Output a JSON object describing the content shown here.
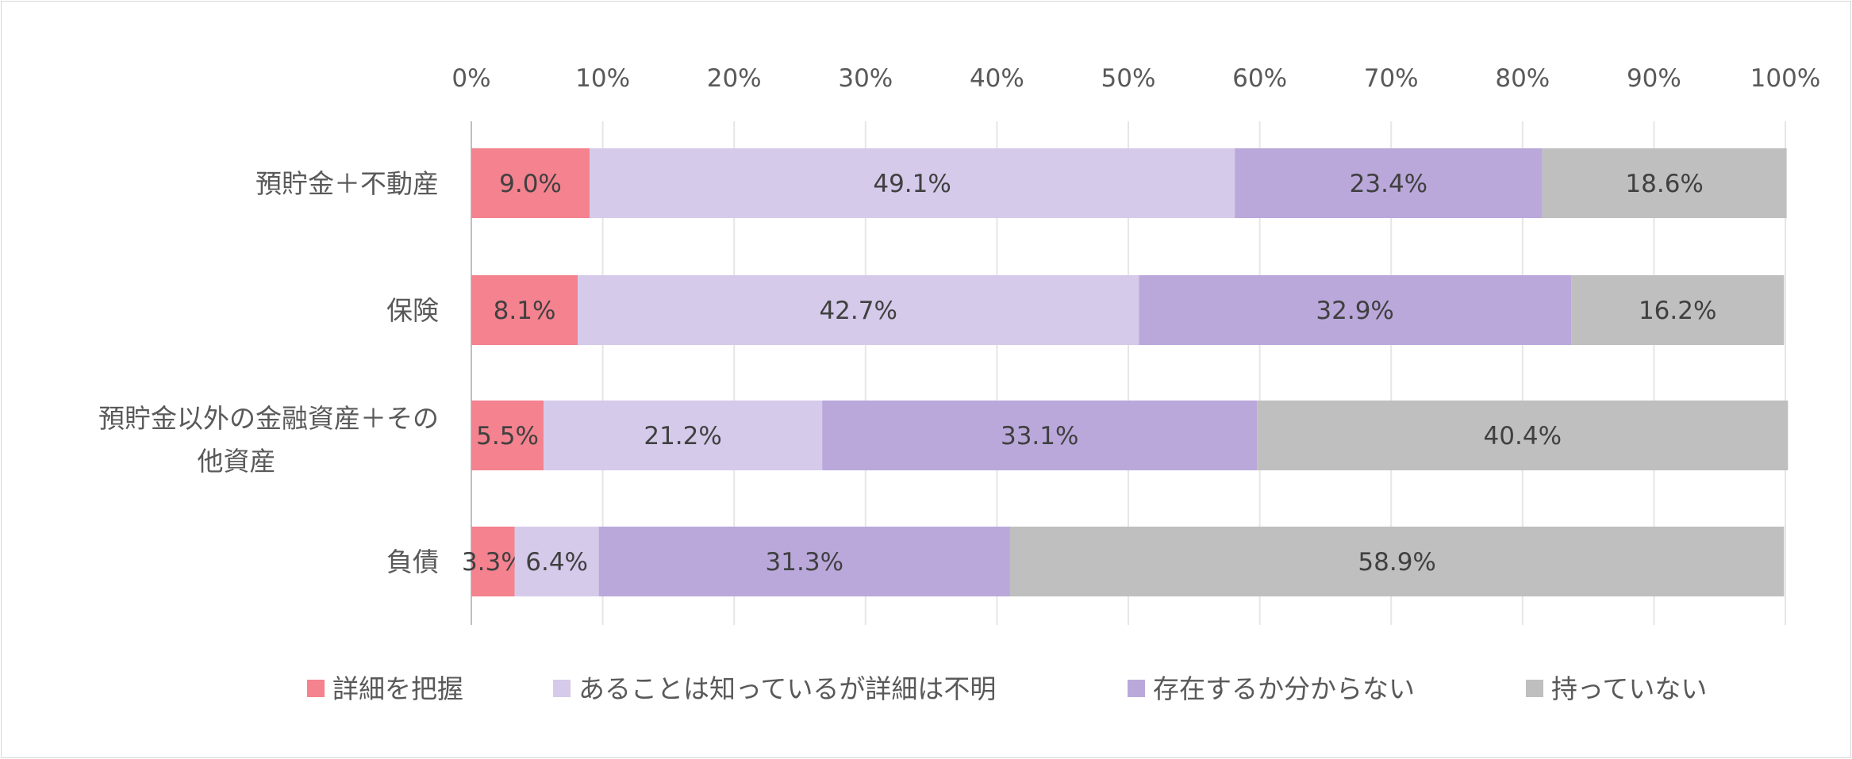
{
  "chart_data": {
    "type": "bar",
    "orientation": "horizontal",
    "stacked": "percent",
    "categories": [
      "預貯金＋不動産",
      "保険",
      "預貯金以外の金融資産＋その他資産",
      "負債"
    ],
    "category_lines": [
      [
        "預貯金＋不動産"
      ],
      [
        "保険"
      ],
      [
        "預貯金以外の金融資産＋その",
        "他資産"
      ],
      [
        "負債"
      ]
    ],
    "series": [
      {
        "name": "詳細を把握",
        "color": "#F4828F",
        "values": [
          9.0,
          8.1,
          5.5,
          3.3
        ],
        "labels": [
          "9.0%",
          "8.1%",
          "5.5%",
          "3.3%"
        ]
      },
      {
        "name": "あることは知っているが詳細は不明",
        "color": "#D5CAEA",
        "values": [
          49.1,
          42.7,
          21.2,
          6.4
        ],
        "labels": [
          "49.1%",
          "42.7%",
          "21.2%",
          "6.4%"
        ]
      },
      {
        "name": "存在するか分からない",
        "color": "#BAA8DB",
        "values": [
          23.4,
          32.9,
          33.1,
          31.3
        ],
        "labels": [
          "23.4%",
          "32.9%",
          "33.1%",
          "31.3%"
        ]
      },
      {
        "name": "持っていない",
        "color": "#BFBFBF",
        "values": [
          18.6,
          16.2,
          40.4,
          58.9
        ],
        "labels": [
          "18.6%",
          "16.2%",
          "40.4%",
          "58.9%"
        ]
      }
    ],
    "x_axis": {
      "position": "top",
      "range": [
        0,
        100
      ],
      "ticks": [
        "0%",
        "10%",
        "20%",
        "30%",
        "40%",
        "50%",
        "60%",
        "70%",
        "80%",
        "90%",
        "100%"
      ]
    },
    "grid": true,
    "legend": "bottom"
  }
}
